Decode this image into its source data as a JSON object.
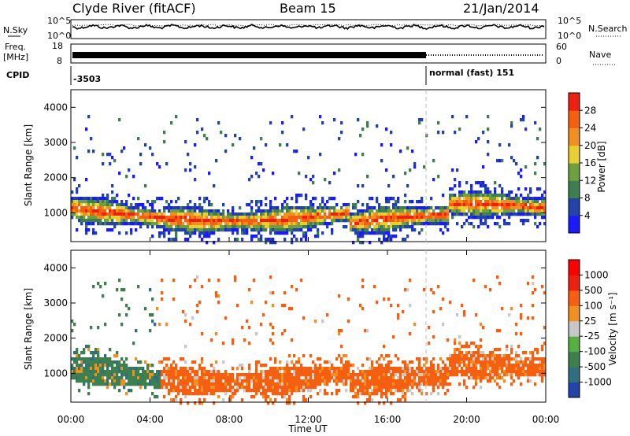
{
  "header": {
    "station": "Clyde River (fitACF)",
    "beam": "Beam 15",
    "date": "21/Jan/2014"
  },
  "top_panels": {
    "nsky_label": "N.Sky",
    "nsearch_label": "N.Search",
    "noise_ticks": [
      "10^5",
      "10^0"
    ],
    "freq_label": "Freq.",
    "freq_unit": "[MHz]",
    "freq_ticks": [
      "18",
      "8"
    ],
    "nave_label": "Nave",
    "nave_ticks": [
      "60",
      "0"
    ],
    "cpid_label": "CPID",
    "cpid_segments": [
      {
        "label": "-3503",
        "start_hour": 0,
        "end_hour": 18
      },
      {
        "label": "normal (fast) 151",
        "start_hour": 18,
        "end_hour": 24
      }
    ]
  },
  "chart_data": [
    {
      "type": "heatmap",
      "title": "",
      "xlabel": "Time UT",
      "ylabel": "Slant Range [km]",
      "x_range_hours": [
        0,
        24
      ],
      "x_ticks": [
        "00:00",
        "04:00",
        "08:00",
        "12:00",
        "16:00",
        "20:00",
        "00:00"
      ],
      "ylim": [
        180,
        4500
      ],
      "y_ticks": [
        1000,
        2000,
        3000,
        4000
      ],
      "colorbar": {
        "label": "Power [dB]",
        "ticks": [
          "4",
          "8",
          "12",
          "16",
          "20",
          "24",
          "28"
        ],
        "range": [
          0,
          30
        ],
        "colors": [
          "#1a1aff",
          "#2244aa",
          "#3d8050",
          "#6fa040",
          "#e8d030",
          "#f09020",
          "#f56010",
          "#ee2010"
        ]
      }
    },
    {
      "type": "heatmap",
      "title": "",
      "xlabel": "Time UT",
      "ylabel": "Slant Range [km]",
      "x_range_hours": [
        0,
        24
      ],
      "x_ticks": [
        "00:00",
        "04:00",
        "08:00",
        "12:00",
        "16:00",
        "20:00",
        "00:00"
      ],
      "ylim": [
        180,
        4500
      ],
      "y_ticks": [
        1000,
        2000,
        3000,
        4000
      ],
      "colorbar": {
        "label": "Velocity [m s⁻¹]",
        "ticks": [
          "1000",
          "500",
          "100",
          "25",
          "-25",
          "-100",
          "-500",
          "-1000"
        ],
        "colors": [
          "#2244aa",
          "#2f6f80",
          "#3d8050",
          "#55b040",
          "#c8c8c8",
          "#f09020",
          "#f56010",
          "#ee2010",
          "#ff0000"
        ]
      }
    }
  ],
  "footer": {
    "xlabel": "Time UT"
  }
}
